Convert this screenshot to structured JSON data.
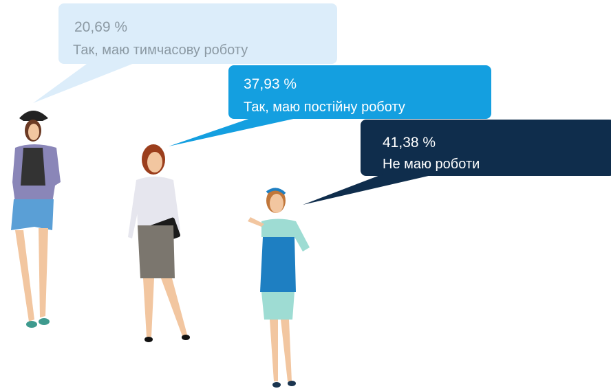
{
  "items": [
    {
      "percent": "20,69 %",
      "label": "Так, маю тимчасову роботу"
    },
    {
      "percent": "37,93 %",
      "label": "Так, маю постійну роботу"
    },
    {
      "percent": "41,38 %",
      "label": "Не маю роботи"
    }
  ]
}
